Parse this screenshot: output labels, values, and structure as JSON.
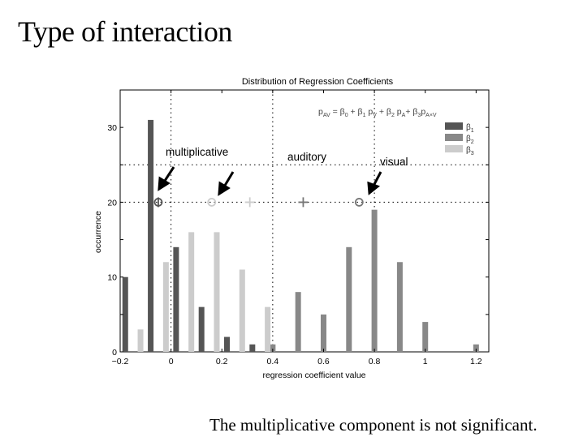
{
  "slide": {
    "title": "Type of interaction",
    "footer": "The multiplicative component is not significant."
  },
  "chart_data": {
    "type": "bar",
    "title": "Distribution of Regression Coefficients",
    "xlabel": "regression coefficient value",
    "ylabel": "occurrence",
    "xlim": [
      -0.2,
      1.25
    ],
    "ylim": [
      0,
      35
    ],
    "xticks": [
      "-0.2",
      "0",
      "0.2",
      "0.4",
      "0.6",
      "0.8",
      "1",
      "1.2"
    ],
    "yticks": [
      "0",
      "10",
      "20",
      "30"
    ],
    "grid": "dotted",
    "equation": "p_AV = β0 + β1 pV + β2 pA + β3 pA×V",
    "legend": {
      "position": "top-right",
      "entries": [
        {
          "label": "β1",
          "color": "#555555"
        },
        {
          "label": "β2",
          "color": "#888888"
        },
        {
          "label": "β3",
          "color": "#cccccc"
        }
      ]
    },
    "series": [
      {
        "name": "β1",
        "color": "#555555",
        "points": [
          [
            -0.18,
            10
          ],
          [
            -0.08,
            31
          ],
          [
            0.02,
            14
          ],
          [
            0.12,
            6
          ],
          [
            0.22,
            2
          ],
          [
            0.32,
            1
          ]
        ]
      },
      {
        "name": "β2",
        "color": "#888888",
        "points": [
          [
            0.4,
            1
          ],
          [
            0.5,
            8
          ],
          [
            0.6,
            5
          ],
          [
            0.7,
            14
          ],
          [
            0.8,
            19
          ],
          [
            0.9,
            12
          ],
          [
            1.0,
            4
          ],
          [
            1.2,
            1
          ]
        ]
      },
      {
        "name": "β3",
        "color": "#cccccc",
        "points": [
          [
            -0.12,
            3
          ],
          [
            -0.02,
            12
          ],
          [
            0.08,
            16
          ],
          [
            0.18,
            16
          ],
          [
            0.28,
            11
          ],
          [
            0.38,
            6
          ]
        ]
      }
    ],
    "markers": [
      {
        "symbol": "o",
        "x": -0.05,
        "y": 20,
        "color": "#555555"
      },
      {
        "symbol": "|",
        "x": -0.05,
        "y": 20,
        "color": "#555555"
      },
      {
        "symbol": "o",
        "x": 0.16,
        "y": 20,
        "color": "#cccccc"
      },
      {
        "symbol": "+",
        "x": 0.31,
        "y": 20,
        "color": "#cccccc"
      },
      {
        "symbol": "+",
        "x": 0.52,
        "y": 20,
        "color": "#777777"
      },
      {
        "symbol": "o",
        "x": 0.74,
        "y": 20,
        "color": "#777777"
      }
    ],
    "annotations": [
      {
        "text": "multiplicative"
      },
      {
        "text": "auditory"
      },
      {
        "text": "visual"
      }
    ]
  }
}
